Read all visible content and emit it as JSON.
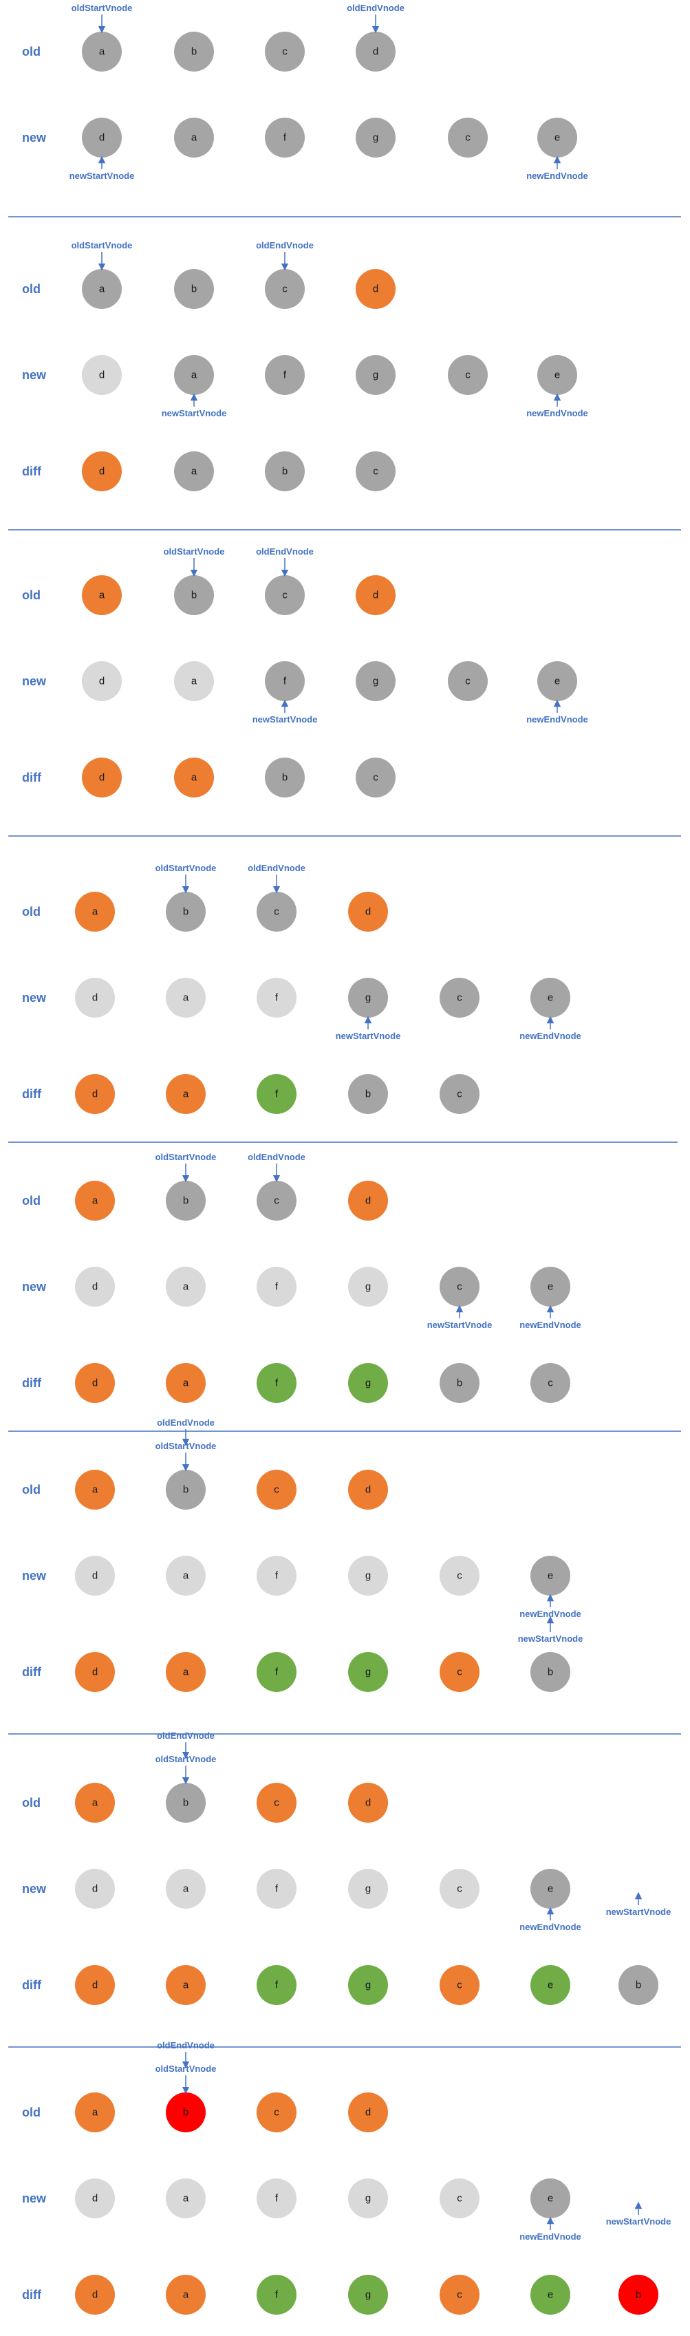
{
  "labels": {
    "old": "old",
    "new": "new",
    "diff": "diff"
  },
  "pointers": {
    "oldStart": "oldStartVnode",
    "oldEnd": "oldEndVnode",
    "newStart": "newStartVnode",
    "newEnd": "newEndVnode"
  },
  "colors": {
    "gray": "#a5a5a5",
    "light": "#d9d9d9",
    "orange": "#ed7d31",
    "green": "#70ad47",
    "red": "#ff0000",
    "arrow": "#4472c4",
    "divider": "#4472c4"
  },
  "steps": [
    {
      "old": [
        [
          "a",
          "gray"
        ],
        [
          "b",
          "gray"
        ],
        [
          "c",
          "gray"
        ],
        [
          "d",
          "gray"
        ]
      ],
      "new": [
        [
          "d",
          "gray"
        ],
        [
          "a",
          "gray"
        ],
        [
          "f",
          "gray"
        ],
        [
          "g",
          "gray"
        ],
        [
          "c",
          "gray"
        ],
        [
          "e",
          "gray"
        ]
      ],
      "diff": null,
      "pointers": {
        "oldStart": {
          "index": 0
        },
        "oldEnd": {
          "index": 3
        },
        "newStart": {
          "index": 0
        },
        "newEnd": {
          "index": 5
        }
      }
    },
    {
      "old": [
        [
          "a",
          "gray"
        ],
        [
          "b",
          "gray"
        ],
        [
          "c",
          "gray"
        ],
        [
          "d",
          "orange"
        ]
      ],
      "new": [
        [
          "d",
          "light"
        ],
        [
          "a",
          "gray"
        ],
        [
          "f",
          "gray"
        ],
        [
          "g",
          "gray"
        ],
        [
          "c",
          "gray"
        ],
        [
          "e",
          "gray"
        ]
      ],
      "diff": [
        [
          "d",
          "orange"
        ],
        [
          "a",
          "gray"
        ],
        [
          "b",
          "gray"
        ],
        [
          "c",
          "gray"
        ]
      ],
      "pointers": {
        "oldStart": {
          "index": 0
        },
        "oldEnd": {
          "index": 2
        },
        "newStart": {
          "index": 1
        },
        "newEnd": {
          "index": 5
        }
      }
    },
    {
      "old": [
        [
          "a",
          "orange"
        ],
        [
          "b",
          "gray"
        ],
        [
          "c",
          "gray"
        ],
        [
          "d",
          "orange"
        ]
      ],
      "new": [
        [
          "d",
          "light"
        ],
        [
          "a",
          "light"
        ],
        [
          "f",
          "gray"
        ],
        [
          "g",
          "gray"
        ],
        [
          "c",
          "gray"
        ],
        [
          "e",
          "gray"
        ]
      ],
      "diff": [
        [
          "d",
          "orange"
        ],
        [
          "a",
          "orange"
        ],
        [
          "b",
          "gray"
        ],
        [
          "c",
          "gray"
        ]
      ],
      "pointers": {
        "oldStart": {
          "index": 1
        },
        "oldEnd": {
          "index": 2
        },
        "newStart": {
          "index": 2
        },
        "newEnd": {
          "index": 5
        }
      }
    },
    {
      "old": [
        [
          "a",
          "orange"
        ],
        [
          "b",
          "gray"
        ],
        [
          "c",
          "gray"
        ],
        [
          "d",
          "orange"
        ]
      ],
      "new": [
        [
          "d",
          "light"
        ],
        [
          "a",
          "light"
        ],
        [
          "f",
          "light"
        ],
        [
          "g",
          "gray"
        ],
        [
          "c",
          "gray"
        ],
        [
          "e",
          "gray"
        ]
      ],
      "diff": [
        [
          "d",
          "orange"
        ],
        [
          "a",
          "orange"
        ],
        [
          "f",
          "green"
        ],
        [
          "b",
          "gray"
        ],
        [
          "c",
          "gray"
        ]
      ],
      "pointers": {
        "oldStart": {
          "index": 1
        },
        "oldEnd": {
          "index": 2
        },
        "newStart": {
          "index": 3
        },
        "newEnd": {
          "index": 5
        }
      }
    },
    {
      "old": [
        [
          "a",
          "orange"
        ],
        [
          "b",
          "gray"
        ],
        [
          "c",
          "gray"
        ],
        [
          "d",
          "orange"
        ]
      ],
      "new": [
        [
          "d",
          "light"
        ],
        [
          "a",
          "light"
        ],
        [
          "f",
          "light"
        ],
        [
          "g",
          "light"
        ],
        [
          "c",
          "gray"
        ],
        [
          "e",
          "gray"
        ]
      ],
      "diff": [
        [
          "d",
          "orange"
        ],
        [
          "a",
          "orange"
        ],
        [
          "f",
          "green"
        ],
        [
          "g",
          "green"
        ],
        [
          "b",
          "gray"
        ],
        [
          "c",
          "gray"
        ]
      ],
      "pointers": {
        "oldStart": {
          "index": 1
        },
        "oldEnd": {
          "index": 2
        },
        "newStart": {
          "index": 4
        },
        "newEnd": {
          "index": 5
        }
      }
    },
    {
      "old": [
        [
          "a",
          "orange"
        ],
        [
          "b",
          "gray"
        ],
        [
          "c",
          "orange"
        ],
        [
          "d",
          "orange"
        ]
      ],
      "new": [
        [
          "d",
          "light"
        ],
        [
          "a",
          "light"
        ],
        [
          "f",
          "light"
        ],
        [
          "g",
          "light"
        ],
        [
          "c",
          "light"
        ],
        [
          "e",
          "gray"
        ]
      ],
      "diff": [
        [
          "d",
          "orange"
        ],
        [
          "a",
          "orange"
        ],
        [
          "f",
          "green"
        ],
        [
          "g",
          "green"
        ],
        [
          "c",
          "orange"
        ],
        [
          "b",
          "gray"
        ]
      ],
      "pointers": {
        "oldStart": {
          "index": 1
        },
        "oldEnd": {
          "index": 1
        },
        "newStart": {
          "index": 5
        },
        "newEnd": {
          "index": 5
        }
      }
    },
    {
      "old": [
        [
          "a",
          "orange"
        ],
        [
          "b",
          "gray"
        ],
        [
          "c",
          "orange"
        ],
        [
          "d",
          "orange"
        ]
      ],
      "new": [
        [
          "d",
          "light"
        ],
        [
          "a",
          "light"
        ],
        [
          "f",
          "light"
        ],
        [
          "g",
          "light"
        ],
        [
          "c",
          "light"
        ],
        [
          "e",
          "gray"
        ]
      ],
      "diff": [
        [
          "d",
          "orange"
        ],
        [
          "a",
          "orange"
        ],
        [
          "f",
          "green"
        ],
        [
          "g",
          "green"
        ],
        [
          "c",
          "orange"
        ],
        [
          "e",
          "green"
        ],
        [
          "b",
          "gray"
        ]
      ],
      "pointers": {
        "oldStart": {
          "index": 1
        },
        "oldEnd": {
          "index": 1
        },
        "newStart": {
          "index": 6
        },
        "newEnd": {
          "index": 5
        }
      }
    },
    {
      "old": [
        [
          "a",
          "orange"
        ],
        [
          "b",
          "red"
        ],
        [
          "c",
          "orange"
        ],
        [
          "d",
          "orange"
        ]
      ],
      "new": [
        [
          "d",
          "light"
        ],
        [
          "a",
          "light"
        ],
        [
          "f",
          "light"
        ],
        [
          "g",
          "light"
        ],
        [
          "c",
          "light"
        ],
        [
          "e",
          "gray"
        ]
      ],
      "diff": [
        [
          "d",
          "orange"
        ],
        [
          "a",
          "orange"
        ],
        [
          "f",
          "green"
        ],
        [
          "g",
          "green"
        ],
        [
          "c",
          "orange"
        ],
        [
          "e",
          "green"
        ],
        [
          "b",
          "red"
        ]
      ],
      "pointers": {
        "oldStart": {
          "index": 1
        },
        "oldEnd": {
          "index": 1
        },
        "newStart": {
          "index": 6
        },
        "newEnd": {
          "index": 5
        }
      }
    }
  ]
}
